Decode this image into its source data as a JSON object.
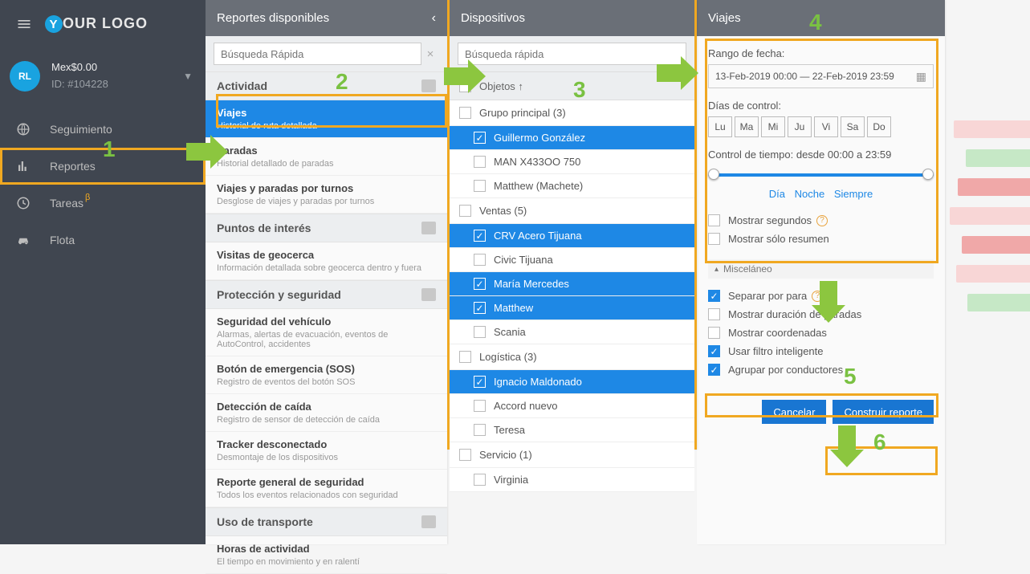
{
  "logo_rest": "OUR LOGO",
  "account": {
    "initials": "RL",
    "balance": "Mex$0.00",
    "id_label": "ID: #104228"
  },
  "nav": {
    "seguimiento": "Seguimiento",
    "reportes": "Reportes",
    "tareas": "Tareas",
    "beta": "β",
    "flota": "Flota"
  },
  "panel1": {
    "title": "Reportes disponibles",
    "search_placeholder": "Búsqueda Rápida",
    "cats": {
      "actividad": "Actividad",
      "poi": "Puntos de interés",
      "seguridad": "Protección y seguridad",
      "uso": "Uso de transporte"
    },
    "reports": {
      "viajes": {
        "t": "Viajes",
        "d": "Historial de ruta detallada"
      },
      "paradas": {
        "t": "Paradas",
        "d": "Historial detallado de paradas"
      },
      "turnos": {
        "t": "Viajes y paradas por turnos",
        "d": "Desglose de viajes y paradas por turnos"
      },
      "geocerca": {
        "t": "Visitas de geocerca",
        "d": "Información detallada sobre geocerca dentro y fuera"
      },
      "segveh": {
        "t": "Seguridad del vehículo",
        "d": "Alarmas, alertas de evacuación, eventos de AutoControl, accidentes"
      },
      "sos": {
        "t": "Botón de emergencia (SOS)",
        "d": "Registro de eventos del botón SOS"
      },
      "caida": {
        "t": "Detección de caída",
        "d": "Registro de sensor de detección de caída"
      },
      "track": {
        "t": "Tracker desconectado",
        "d": "Desmontaje de los dispositivos"
      },
      "repseg": {
        "t": "Reporte general de seguridad",
        "d": "Todos los eventos relacionados con seguridad"
      },
      "horas": {
        "t": "Horas de actividad",
        "d": "El tiempo en movimiento y en ralentí"
      }
    }
  },
  "panel2": {
    "title": "Dispositivos",
    "search_placeholder": "Búsqueda rápida",
    "sort_label": "Objetos ↑",
    "groups": {
      "principal": {
        "label": "Grupo principal (3)",
        "checked": false,
        "sel": false
      },
      "ventas": {
        "label": "Ventas (5)",
        "checked": false,
        "sel": false
      },
      "logistica": {
        "label": "Logística (3)",
        "checked": false,
        "sel": false
      },
      "servicio": {
        "label": "Servicio (1)",
        "checked": false,
        "sel": false
      }
    },
    "items": {
      "guillermo": {
        "label": "Guillermo González",
        "checked": true,
        "sel": true
      },
      "man": {
        "label": "MAN X433OO 750",
        "checked": false,
        "sel": false
      },
      "matthewm": {
        "label": "Matthew (Machete)",
        "checked": false,
        "sel": false
      },
      "crv": {
        "label": "CRV Acero Tijuana",
        "checked": true,
        "sel": true
      },
      "civic": {
        "label": "Civic Tijuana",
        "checked": false,
        "sel": false
      },
      "maria": {
        "label": "María Mercedes",
        "checked": true,
        "sel": true
      },
      "matthew": {
        "label": "Matthew",
        "checked": true,
        "sel": true
      },
      "scania": {
        "label": "Scania",
        "checked": false,
        "sel": false
      },
      "ignacio": {
        "label": "Ignacio Maldonado",
        "checked": true,
        "sel": true
      },
      "accord": {
        "label": "Accord nuevo",
        "checked": false,
        "sel": false
      },
      "teresa": {
        "label": "Teresa",
        "checked": false,
        "sel": false
      },
      "virginia": {
        "label": "Virginia",
        "checked": false,
        "sel": false
      }
    }
  },
  "panel3": {
    "title": "Viajes",
    "rango_label": "Rango de fecha:",
    "date_value": "13-Feb-2019 00:00 — 22-Feb-2019 23:59",
    "dias_label": "Días de control:",
    "days": [
      "Lu",
      "Ma",
      "Mi",
      "Ju",
      "Vi",
      "Sa",
      "Do"
    ],
    "tiempo_label": "Control de tiempo: desde 00:00 a 23:59",
    "links": {
      "dia": "Día",
      "noche": "Noche",
      "siempre": "Siempre"
    },
    "mostrar_seg": "Mostrar segundos",
    "mostrar_resumen": "Mostrar sólo resumen",
    "misc": "Misceláneo",
    "separar": "Separar por para",
    "dur_paradas": "Mostrar duración de paradas",
    "coord": "Mostrar coordenadas",
    "filtro": "Usar filtro inteligente",
    "agrupar": "Agrupar por conductores",
    "cancel": "Cancelar",
    "build": "Construir reporte"
  },
  "callouts": {
    "n1": "1",
    "n2": "2",
    "n3": "3",
    "n4": "4",
    "n5": "5",
    "n6": "6",
    "arrow_color": "#8cc63f",
    "hl_color": "#f0a821"
  },
  "chart_bars": [
    {
      "w": 95,
      "color": "#f8d6d6"
    },
    {
      "w": 80,
      "color": "#c6e8c6"
    },
    {
      "w": 90,
      "color": "#f0a8a8"
    },
    {
      "w": 100,
      "color": "#f8d6d6"
    },
    {
      "w": 85,
      "color": "#f0a8a8"
    },
    {
      "w": 92,
      "color": "#f8d6d6"
    },
    {
      "w": 78,
      "color": "#c6e8c6"
    }
  ]
}
